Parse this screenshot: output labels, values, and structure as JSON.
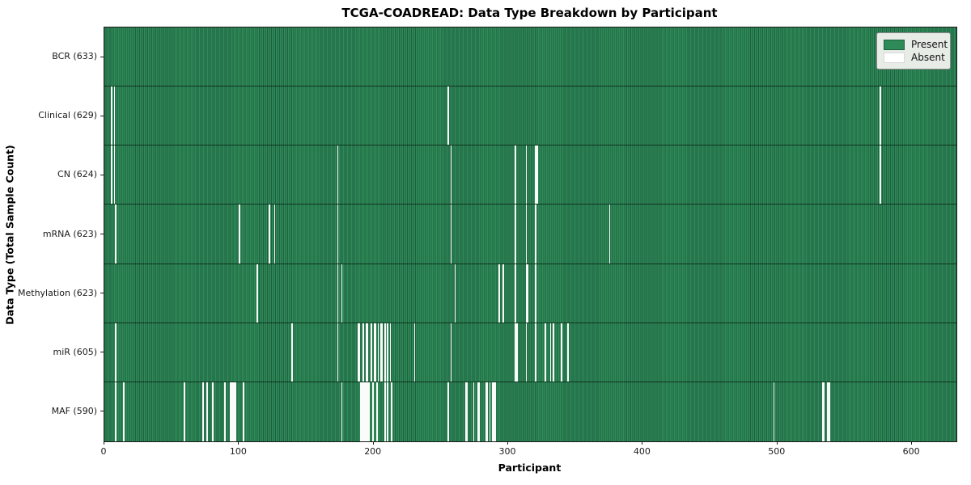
{
  "chart_data": {
    "type": "heatmap",
    "title": "TCGA-COADREAD: Data Type Breakdown by Participant",
    "xlabel": "Participant",
    "ylabel": "Data Type (Total Sample Count)",
    "x_ticks": [
      0,
      100,
      200,
      300,
      400,
      500,
      600
    ],
    "xlim": [
      0,
      633
    ],
    "n_participants": 633,
    "grid": false,
    "legend": {
      "position": "upper-right",
      "present_label": "Present",
      "absent_label": "Absent"
    },
    "colors": {
      "present": "#2e8b57",
      "present_edge": "#205f40",
      "absent": "#fafcfa",
      "legend_bg": "#e7ece7",
      "legend_border": "#8a8a8a"
    },
    "value_encoding": {
      "present": 1,
      "absent": 0
    },
    "rows": [
      {
        "label": "BCR (633)",
        "data_type": "BCR",
        "sample_count": 633,
        "absent_participants": []
      },
      {
        "label": "Clinical (629)",
        "data_type": "Clinical",
        "sample_count": 629,
        "absent_participants": [
          5,
          7,
          255,
          576
        ]
      },
      {
        "label": "CN (624)",
        "data_type": "CN",
        "sample_count": 624,
        "absent_participants": [
          5,
          7,
          173,
          257,
          305,
          313,
          320,
          321,
          576
        ]
      },
      {
        "label": "mRNA (623)",
        "data_type": "mRNA",
        "sample_count": 623,
        "absent_participants": [
          8,
          100,
          122,
          126,
          173,
          257,
          305,
          313,
          320,
          375
        ]
      },
      {
        "label": "Methylation (623)",
        "data_type": "Methylation",
        "sample_count": 623,
        "absent_participants": [
          113,
          173,
          176,
          260,
          293,
          296,
          305,
          313,
          314,
          320
        ]
      },
      {
        "label": "miR (605)",
        "data_type": "miR",
        "sample_count": 605,
        "absent_participants": [
          8,
          139,
          173,
          188,
          189,
          192,
          194,
          195,
          198,
          200,
          201,
          203,
          205,
          206,
          208,
          210,
          212,
          230,
          257,
          305,
          306,
          313,
          320,
          327,
          331,
          333,
          339,
          344
        ]
      },
      {
        "label": "MAF (590)",
        "data_type": "MAF",
        "sample_count": 590,
        "absent_participants": [
          8,
          14,
          59,
          73,
          76,
          80,
          89,
          93,
          94,
          95,
          96,
          97,
          103,
          176,
          190,
          191,
          192,
          193,
          194,
          195,
          196,
          199,
          202,
          208,
          210,
          213,
          255,
          268,
          269,
          274,
          277,
          278,
          283,
          284,
          286,
          288,
          289,
          290,
          497,
          533,
          534,
          537,
          538
        ]
      }
    ]
  }
}
